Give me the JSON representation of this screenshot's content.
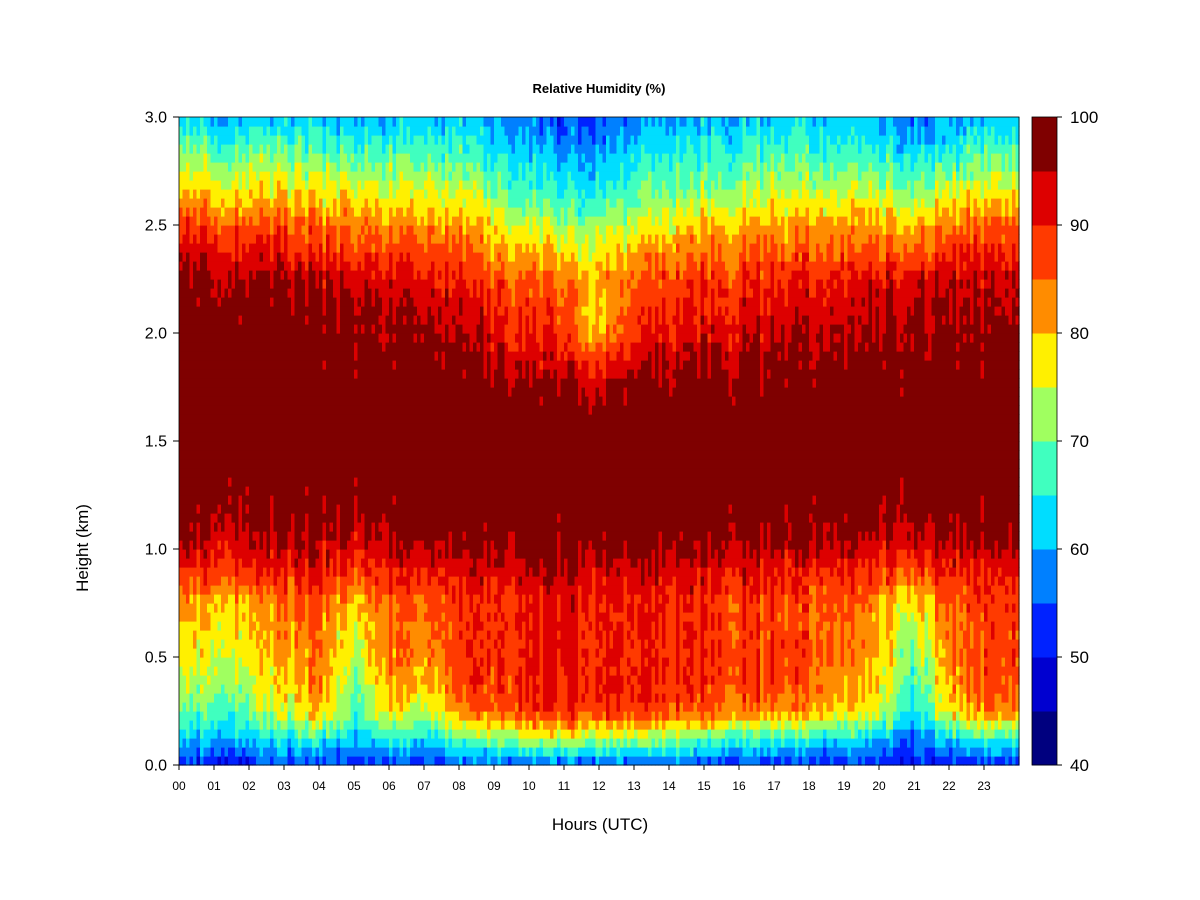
{
  "chart_data": {
    "type": "heatmap",
    "title": "Relative Humidity (%)",
    "xlabel": "Hours (UTC)",
    "ylabel": "Height (km)",
    "xlim": [
      0,
      24
    ],
    "ylim": [
      0.0,
      3.0
    ],
    "x_ticks": [
      "00",
      "01",
      "02",
      "03",
      "04",
      "05",
      "06",
      "07",
      "08",
      "09",
      "10",
      "11",
      "12",
      "13",
      "14",
      "15",
      "16",
      "17",
      "18",
      "19",
      "20",
      "21",
      "22",
      "23"
    ],
    "y_ticks": [
      "0.0",
      "0.5",
      "1.0",
      "1.5",
      "2.0",
      "2.5",
      "3.0"
    ],
    "colorbar": {
      "min": 40,
      "max": 100,
      "step": 5,
      "tick_labels": [
        "40",
        "50",
        "60",
        "70",
        "80",
        "90",
        "100"
      ],
      "colors": [
        "#00007F",
        "#0000D0",
        "#0022FF",
        "#0080FF",
        "#00DDFF",
        "#40FFBF",
        "#A0FF60",
        "#FFF000",
        "#FF8C00",
        "#FF3A00",
        "#DD0000",
        "#7F0000"
      ]
    },
    "hours": [
      0,
      1,
      2,
      3,
      4,
      5,
      6,
      7,
      8,
      9,
      10,
      11,
      12,
      13,
      14,
      15,
      16,
      17,
      18,
      19,
      20,
      21,
      22,
      23
    ],
    "heights_km": [
      0.0,
      0.125,
      0.25,
      0.375,
      0.5,
      0.625,
      0.75,
      0.875,
      1.0,
      1.125,
      1.25,
      1.375,
      1.5,
      1.625,
      1.75,
      1.875,
      2.0,
      2.125,
      2.25,
      2.375,
      2.5,
      2.625,
      2.75,
      2.875,
      3.0
    ],
    "profiles": [
      {
        "hour": 0,
        "rh": [
          50,
          60,
          67,
          72,
          76,
          78,
          80,
          87,
          93,
          97,
          99,
          100,
          100,
          100,
          100,
          100,
          99,
          98,
          96,
          92,
          88,
          80,
          75,
          68,
          62
        ]
      },
      {
        "hour": 1,
        "rh": [
          51,
          62,
          69,
          73,
          77,
          79,
          81,
          88,
          93,
          97,
          99,
          100,
          100,
          100,
          100,
          100,
          100,
          99,
          97,
          93,
          88,
          80,
          75,
          68,
          62
        ]
      },
      {
        "hour": 2,
        "rh": [
          52,
          63,
          71,
          75,
          78,
          80,
          82,
          89,
          94,
          97,
          99,
          100,
          100,
          100,
          100,
          100,
          100,
          99,
          97,
          92,
          87,
          80,
          75,
          68,
          62
        ]
      },
      {
        "hour": 3,
        "rh": [
          53,
          64,
          75,
          78,
          80,
          81,
          83,
          89,
          94,
          97,
          99,
          100,
          100,
          100,
          100,
          100,
          99,
          98,
          96,
          90,
          86,
          79,
          74,
          67,
          61
        ]
      },
      {
        "hour": 4,
        "rh": [
          53,
          66,
          80,
          83,
          84,
          85,
          86,
          90,
          94,
          97,
          99,
          100,
          100,
          100,
          100,
          99,
          98,
          97,
          94,
          88,
          85,
          78,
          73,
          67,
          61
        ]
      },
      {
        "hour": 5,
        "rh": [
          52,
          61,
          67,
          70,
          73,
          76,
          79,
          86,
          92,
          96,
          98,
          100,
          100,
          100,
          100,
          99,
          98,
          96,
          93,
          88,
          84,
          78,
          72,
          66,
          60
        ]
      },
      {
        "hour": 6,
        "rh": [
          53,
          66,
          78,
          82,
          84,
          85,
          86,
          90,
          94,
          97,
          99,
          100,
          100,
          100,
          99,
          98,
          96,
          95,
          92,
          87,
          83,
          77,
          72,
          66,
          60
        ]
      },
      {
        "hour": 7,
        "rh": [
          52,
          62,
          72,
          78,
          81,
          83,
          84,
          89,
          93,
          97,
          99,
          100,
          100,
          99,
          98,
          97,
          95,
          93,
          90,
          86,
          82,
          76,
          71,
          65,
          60
        ]
      },
      {
        "hour": 8,
        "rh": [
          54,
          68,
          83,
          86,
          87,
          87,
          88,
          91,
          95,
          98,
          100,
          100,
          100,
          99,
          98,
          96,
          94,
          92,
          89,
          85,
          81,
          75,
          70,
          65,
          60
        ]
      },
      {
        "hour": 9,
        "rh": [
          55,
          72,
          86,
          88,
          89,
          89,
          89,
          92,
          96,
          98,
          100,
          100,
          100,
          100,
          98,
          95,
          92,
          90,
          87,
          83,
          78,
          72,
          67,
          63,
          58
        ]
      },
      {
        "hour": 10,
        "rh": [
          55,
          74,
          88,
          90,
          90,
          90,
          90,
          93,
          97,
          99,
          100,
          100,
          100,
          99,
          97,
          93,
          90,
          88,
          86,
          80,
          75,
          68,
          64,
          60,
          56
        ]
      },
      {
        "hour": 11,
        "rh": [
          55,
          75,
          89,
          91,
          91,
          91,
          91,
          94,
          97,
          99,
          100,
          100,
          100,
          99,
          96,
          92,
          88,
          86,
          84,
          78,
          72,
          66,
          62,
          58,
          53
        ]
      },
      {
        "hour": 12,
        "rh": [
          55,
          73,
          88,
          90,
          90,
          90,
          90,
          93,
          97,
          99,
          100,
          100,
          99,
          98,
          95,
          88,
          80,
          78,
          80,
          77,
          72,
          66,
          62,
          58,
          54
        ]
      },
      {
        "hour": 13,
        "rh": [
          54,
          72,
          88,
          90,
          90,
          90,
          90,
          93,
          97,
          99,
          100,
          100,
          100,
          99,
          97,
          93,
          89,
          87,
          85,
          80,
          75,
          69,
          65,
          61,
          57
        ]
      },
      {
        "hour": 14,
        "rh": [
          54,
          71,
          87,
          89,
          89,
          89,
          89,
          92,
          96,
          99,
          100,
          100,
          100,
          99,
          97,
          94,
          91,
          89,
          87,
          82,
          77,
          71,
          67,
          63,
          59
        ]
      },
      {
        "hour": 15,
        "rh": [
          53,
          69,
          86,
          88,
          89,
          89,
          89,
          92,
          96,
          99,
          100,
          100,
          100,
          100,
          98,
          95,
          92,
          90,
          88,
          84,
          79,
          73,
          68,
          64,
          60
        ]
      },
      {
        "hour": 16,
        "rh": [
          53,
          68,
          85,
          88,
          88,
          88,
          88,
          91,
          95,
          98,
          100,
          100,
          100,
          100,
          98,
          96,
          93,
          91,
          89,
          85,
          80,
          74,
          69,
          65,
          61
        ]
      },
      {
        "hour": 17,
        "rh": [
          53,
          67,
          84,
          87,
          88,
          88,
          88,
          91,
          95,
          98,
          100,
          100,
          100,
          100,
          99,
          97,
          95,
          92,
          90,
          86,
          82,
          76,
          71,
          66,
          62
        ]
      },
      {
        "hour": 18,
        "rh": [
          52,
          66,
          82,
          86,
          87,
          87,
          87,
          90,
          95,
          98,
          99,
          100,
          100,
          100,
          99,
          97,
          95,
          93,
          91,
          86,
          82,
          76,
          71,
          66,
          62
        ]
      },
      {
        "hour": 19,
        "rh": [
          52,
          64,
          79,
          82,
          84,
          85,
          86,
          90,
          94,
          97,
          99,
          100,
          100,
          100,
          99,
          97,
          95,
          93,
          91,
          86,
          82,
          76,
          70,
          65,
          61
        ]
      },
      {
        "hour": 20,
        "rh": [
          52,
          62,
          76,
          79,
          80,
          81,
          82,
          88,
          93,
          97,
          99,
          100,
          100,
          100,
          99,
          97,
          96,
          95,
          93,
          87,
          82,
          76,
          70,
          64,
          60
        ]
      },
      {
        "hour": 21,
        "rh": [
          50,
          57,
          64,
          67,
          70,
          73,
          77,
          86,
          92,
          96,
          99,
          100,
          100,
          100,
          100,
          98,
          97,
          96,
          93,
          86,
          80,
          73,
          67,
          61,
          57
        ]
      },
      {
        "hour": 22,
        "rh": [
          51,
          63,
          78,
          81,
          83,
          84,
          85,
          89,
          94,
          97,
          99,
          100,
          100,
          100,
          100,
          99,
          97,
          96,
          94,
          89,
          84,
          77,
          70,
          63,
          58
        ]
      },
      {
        "hour": 23,
        "rh": [
          52,
          66,
          83,
          86,
          87,
          87,
          87,
          90,
          94,
          97,
          99,
          100,
          100,
          100,
          99,
          98,
          96,
          95,
          93,
          89,
          85,
          78,
          72,
          66,
          61
        ]
      }
    ]
  }
}
